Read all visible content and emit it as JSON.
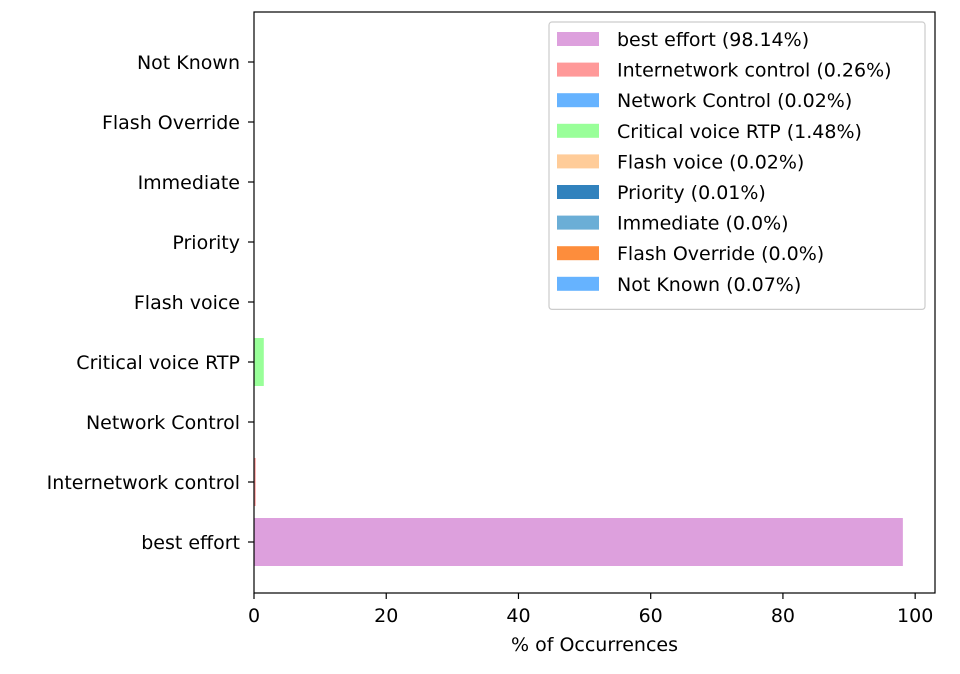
{
  "chart_data": {
    "type": "bar",
    "orientation": "horizontal",
    "xlabel": "% of Occurrences",
    "ylabel": "",
    "xlim": [
      0,
      103
    ],
    "x_ticks": [
      "0",
      "20",
      "40",
      "60",
      "80",
      "100"
    ],
    "grid": false,
    "legend_position": "top-right",
    "categories": [
      "best effort",
      "Internetwork control",
      "Network Control",
      "Critical voice RTP",
      "Flash voice",
      "Priority",
      "Immediate",
      "Flash Override",
      "Not Known"
    ],
    "values": [
      98.14,
      0.26,
      0.02,
      1.48,
      0.02,
      0.01,
      0.0,
      0.0,
      0.07
    ],
    "colors": [
      "#dda0dd",
      "#ff9999",
      "#66b3ff",
      "#99ff99",
      "#ffcc99",
      "#3182bd",
      "#6baed6",
      "#fd8d3c",
      "#66b3ff"
    ],
    "legend": [
      "best effort (98.14%)",
      "Internetwork control (0.26%)",
      "Network Control (0.02%)",
      "Critical voice RTP (1.48%)",
      "Flash voice (0.02%)",
      "Priority (0.01%)",
      "Immediate (0.0%)",
      "Flash Override (0.0%)",
      "Not Known (0.07%)"
    ]
  }
}
